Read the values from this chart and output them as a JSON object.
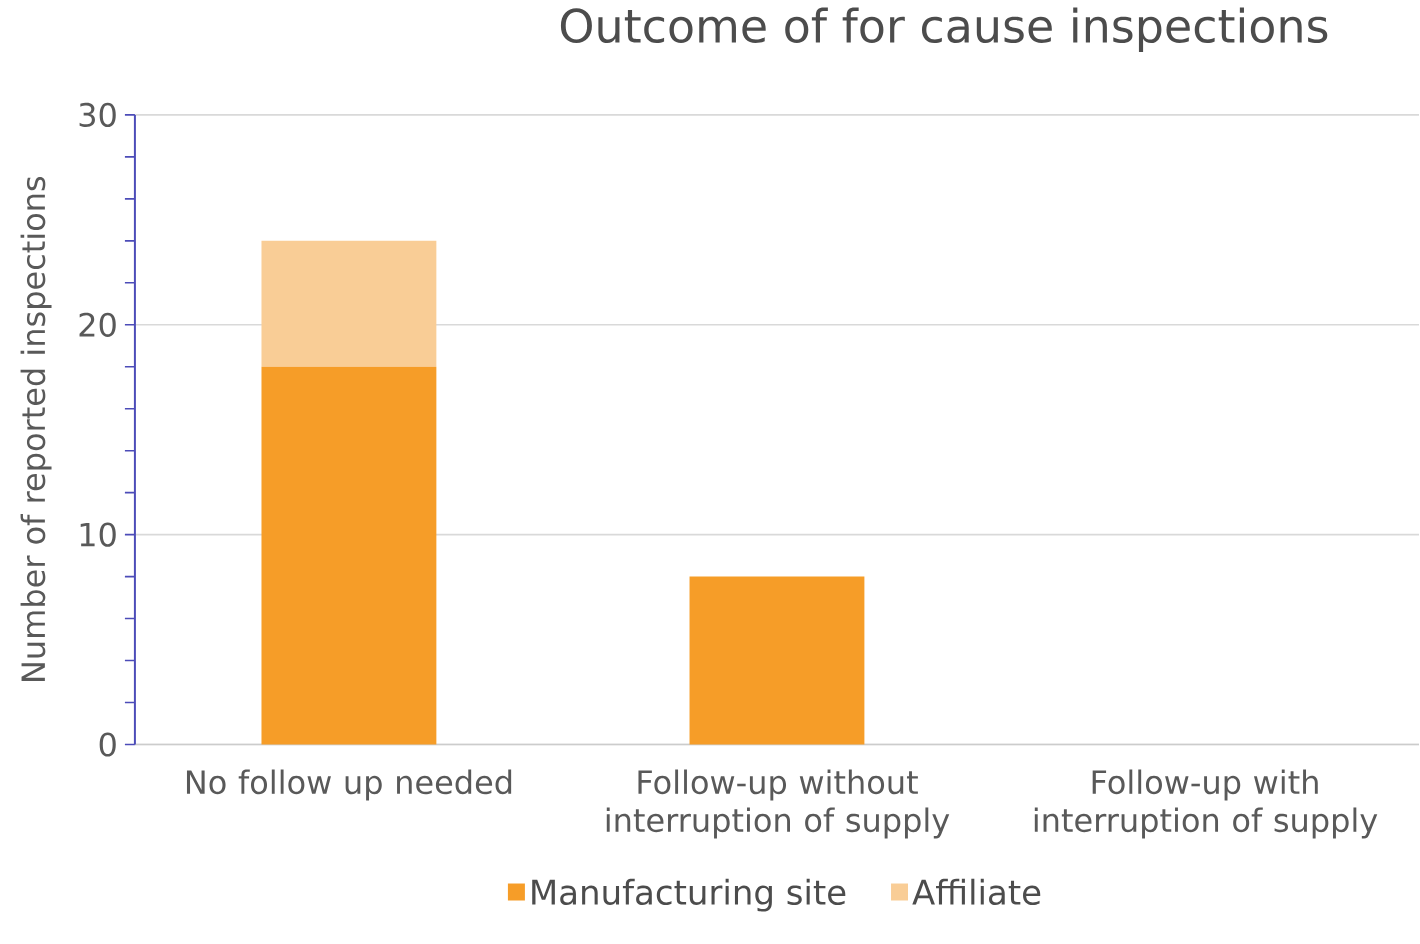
{
  "chart_data": {
    "type": "bar",
    "title": "Outcome of for cause inspections",
    "ylabel": "Number of reported inspections",
    "categories": [
      "No follow up needed",
      "Follow-up without interruption of supply",
      "Follow-up with interruption of supply"
    ],
    "stacked": true,
    "series": [
      {
        "name": "Manufacturing site",
        "color": "#f69d28",
        "values": [
          18,
          8,
          0
        ]
      },
      {
        "name": "Affiliate",
        "color": "#f9cd96",
        "values": [
          6,
          0,
          0
        ]
      }
    ],
    "ylim": [
      0,
      30
    ],
    "yticks": [
      0,
      {
        "value": 2,
        "label": null
      },
      {
        "value": 4,
        "label": null
      },
      {
        "value": 6,
        "label": null
      },
      {
        "value": 8,
        "label": null
      },
      10,
      {
        "value": 12,
        "label": null
      },
      {
        "value": 14,
        "label": null
      },
      {
        "value": 16,
        "label": null
      },
      {
        "value": 18,
        "label": null
      },
      20,
      {
        "value": 22,
        "label": null
      },
      {
        "value": 24,
        "label": null
      },
      {
        "value": 26,
        "label": null
      },
      {
        "value": 28,
        "label": null
      },
      30
    ],
    "grid": "y",
    "legend": "bottom"
  }
}
